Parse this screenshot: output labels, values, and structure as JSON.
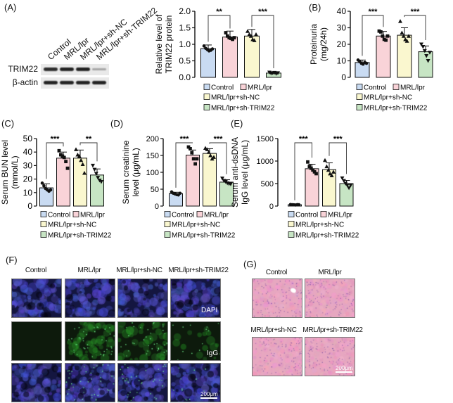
{
  "panel_labels": {
    "a": "(A)",
    "b": "(B)",
    "c": "(C)",
    "d": "(D)",
    "e": "(E)",
    "f": "(F)",
    "g": "(G)"
  },
  "groups": [
    "Control",
    "MRL/lpr",
    "MRL/lpr+sh-NC",
    "MRL/lpr+sh-TRIM22"
  ],
  "colors": {
    "control": "#c9dbf2",
    "mrl": "#f9d3d8",
    "shnc": "#faf7cf",
    "shtrim": "#c7e5c4"
  },
  "western_blot": {
    "rows": [
      "TRIM22",
      "β-actin"
    ],
    "trim22_intensity": [
      0.95,
      1,
      1,
      0.35
    ]
  },
  "chart_data": [
    {
      "id": "A",
      "type": "bar",
      "ylabel": [
        "Relative level of",
        "TRIM22 protein"
      ],
      "ylim": [
        0,
        2.0
      ],
      "ticks": [
        0.0,
        0.5,
        1.0,
        1.5,
        2.0
      ],
      "tick_labels": [
        "0.0",
        "0.5",
        "1.0",
        "1.5",
        "2.0"
      ],
      "categories": [
        "Control",
        "MRL/lpr",
        "MRL/lpr+sh-NC",
        "MRL/lpr+sh-TRIM22"
      ],
      "values": [
        0.87,
        1.22,
        1.25,
        0.13
      ],
      "sd": [
        0.11,
        0.18,
        0.2,
        0.02
      ],
      "points": [
        [
          0.95,
          0.88,
          0.84,
          0.8,
          0.82,
          0.86
        ],
        [
          1.35,
          1.25,
          1.2,
          1.18,
          1.15,
          1.2
        ],
        [
          1.4,
          1.3,
          1.25,
          1.15,
          1.12,
          1.3
        ],
        [
          0.15,
          0.12,
          0.13,
          0.14,
          0.11,
          0.13
        ]
      ],
      "significance": [
        {
          "pair": [
            0,
            1
          ],
          "label": "**"
        },
        {
          "pair": [
            2,
            3
          ],
          "label": "***"
        }
      ]
    },
    {
      "id": "B",
      "type": "bar",
      "ylabel": [
        "Proteinuria",
        "(mg/24h)"
      ],
      "ylim": [
        0,
        40
      ],
      "ticks": [
        0,
        10,
        20,
        30,
        40
      ],
      "tick_labels": [
        "0",
        "10",
        "20",
        "30",
        "40"
      ],
      "categories": [
        "Control",
        "MRL/lpr",
        "MRL/lpr+sh-NC",
        "MRL/lpr+sh-TRIM22"
      ],
      "values": [
        9,
        25,
        25.5,
        15.5
      ],
      "sd": [
        1.5,
        2.8,
        4.5,
        3.5
      ],
      "points": [
        [
          10.5,
          9.5,
          8.5,
          8,
          9,
          8.5
        ],
        [
          28,
          27.5,
          25,
          23,
          22.5,
          25
        ],
        [
          34,
          27,
          25,
          23,
          22,
          25
        ],
        [
          20,
          18.5,
          16,
          13,
          10,
          15
        ]
      ],
      "significance": [
        {
          "pair": [
            0,
            1
          ],
          "label": "***"
        },
        {
          "pair": [
            2,
            3
          ],
          "label": "***"
        }
      ]
    },
    {
      "id": "C",
      "type": "bar",
      "ylabel": [
        "Serum BUN level",
        "(mmol/L)"
      ],
      "ylim": [
        0,
        50
      ],
      "ticks": [
        0,
        10,
        20,
        30,
        40,
        50
      ],
      "tick_labels": [
        "0",
        "10",
        "20",
        "30",
        "40",
        "50"
      ],
      "categories": [
        "Control",
        "MRL/lpr",
        "MRL/lpr+sh-NC",
        "MRL/lpr+sh-TRIM22"
      ],
      "values": [
        13.5,
        35.5,
        35.5,
        23
      ],
      "sd": [
        3,
        4.5,
        6,
        4.5
      ],
      "points": [
        [
          17,
          15,
          13,
          12,
          11,
          12
        ],
        [
          41,
          38,
          37,
          36,
          33,
          28
        ],
        [
          42,
          38,
          37,
          34,
          31,
          24.5
        ],
        [
          30,
          27,
          24,
          21,
          19,
          18
        ]
      ],
      "significance": [
        {
          "pair": [
            0,
            1
          ],
          "label": "***"
        },
        {
          "pair": [
            2,
            3
          ],
          "label": "**"
        }
      ]
    },
    {
      "id": "D",
      "type": "bar",
      "ylabel": [
        "Serum creatinine",
        "level (μg/mL)"
      ],
      "ylim": [
        0,
        200
      ],
      "ticks": [
        0,
        50,
        100,
        150,
        200
      ],
      "tick_labels": [
        "0",
        "50",
        "100",
        "150",
        "200"
      ],
      "categories": [
        "Control",
        "MRL/lpr",
        "MRL/lpr+sh-NC",
        "MRL/lpr+sh-TRIM22"
      ],
      "values": [
        37,
        151,
        156,
        71
      ],
      "sd": [
        4,
        15,
        14,
        7
      ],
      "points": [
        [
          42,
          38,
          36,
          34,
          33,
          38
        ],
        [
          175,
          170,
          158,
          140,
          125,
          140
        ],
        [
          172,
          168,
          160,
          150,
          140,
          145
        ],
        [
          82,
          75,
          72,
          68,
          66,
          65
        ]
      ],
      "significance": [
        {
          "pair": [
            0,
            1
          ],
          "label": "***"
        },
        {
          "pair": [
            2,
            3
          ],
          "label": "***"
        }
      ]
    },
    {
      "id": "E",
      "type": "bar",
      "ylabel": [
        "Serum anti-dsDNA",
        "IgG level (μg/mL)"
      ],
      "ylim": [
        0,
        1500
      ],
      "ticks": [
        0,
        500,
        1000,
        1500
      ],
      "tick_labels": [
        "0",
        "500",
        "1000",
        "1500"
      ],
      "categories": [
        "Control",
        "MRL/lpr",
        "MRL/lpr+sh-NC",
        "MRL/lpr+sh-TRIM22"
      ],
      "values": [
        30,
        830,
        810,
        500
      ],
      "sd": [
        10,
        100,
        150,
        70
      ],
      "points": [
        [
          35,
          30,
          28,
          25,
          32,
          30
        ],
        [
          980,
          880,
          840,
          800,
          760,
          720
        ],
        [
          1020,
          880,
          800,
          720,
          680,
          760
        ],
        [
          620,
          560,
          500,
          460,
          400,
          460
        ]
      ],
      "significance": [
        {
          "pair": [
            0,
            1
          ],
          "label": "***"
        },
        {
          "pair": [
            2,
            3
          ],
          "label": "***"
        }
      ]
    }
  ],
  "panel_f": {
    "columns": [
      "Control",
      "MRL/lpr",
      "MRL/lpr+sh-NC",
      "MRL/lpr+sh-TRIM22"
    ],
    "row_tags": [
      "DAPI",
      "IgG",
      ""
    ],
    "scale_bar": "200μm",
    "igg_density": [
      0,
      0.8,
      0.7,
      0.25
    ]
  },
  "panel_g": {
    "titles": [
      "Control",
      "MRL/lpr",
      "MRL/lpr+sh-NC",
      "MRL/lpr+sh-TRIM22"
    ],
    "scale_bar": "200μm"
  }
}
